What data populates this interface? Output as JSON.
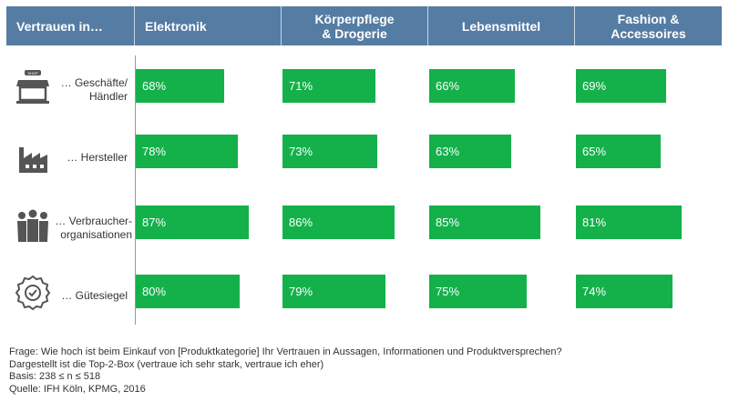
{
  "chart_data": {
    "type": "bar",
    "header_label": "Vertrauen in…",
    "categories": [
      "Elektronik",
      "Körperpflege & Drogerie",
      "Lebensmittel",
      "Fashion & Accessoires"
    ],
    "rows": [
      {
        "label": "… Geschäfte/ Händler",
        "icon": "shop-icon",
        "values": [
          68,
          71,
          66,
          69
        ],
        "labels": [
          "68%",
          "71%",
          "66%",
          "69%"
        ]
      },
      {
        "label": "… Hersteller",
        "icon": "factory-icon",
        "values": [
          78,
          73,
          63,
          65
        ],
        "labels": [
          "78%",
          "73%",
          "63%",
          "65%"
        ]
      },
      {
        "label": "… Verbraucher-organisationen",
        "icon": "people-group-icon",
        "values": [
          87,
          86,
          85,
          81
        ],
        "labels": [
          "87%",
          "86%",
          "85%",
          "81%"
        ]
      },
      {
        "label": "… Gütesiegel",
        "icon": "seal-badge-icon",
        "values": [
          80,
          79,
          75,
          74
        ],
        "labels": [
          "80%",
          "79%",
          "75%",
          "74%"
        ]
      }
    ],
    "bar_color": "#14b14b",
    "header_color": "#557ca3"
  },
  "footer": [
    "Frage: Wie hoch ist beim Einkauf von [Produktkategorie] Ihr Vertrauen in Aussagen, Informationen und Produktversprechen?",
    "Dargestellt ist die Top-2-Box (vertraue ich sehr stark, vertraue ich eher)",
    "Basis: 238 ≤ n ≤ 518",
    "Quelle: IFH Köln, KPMG, 2016"
  ]
}
